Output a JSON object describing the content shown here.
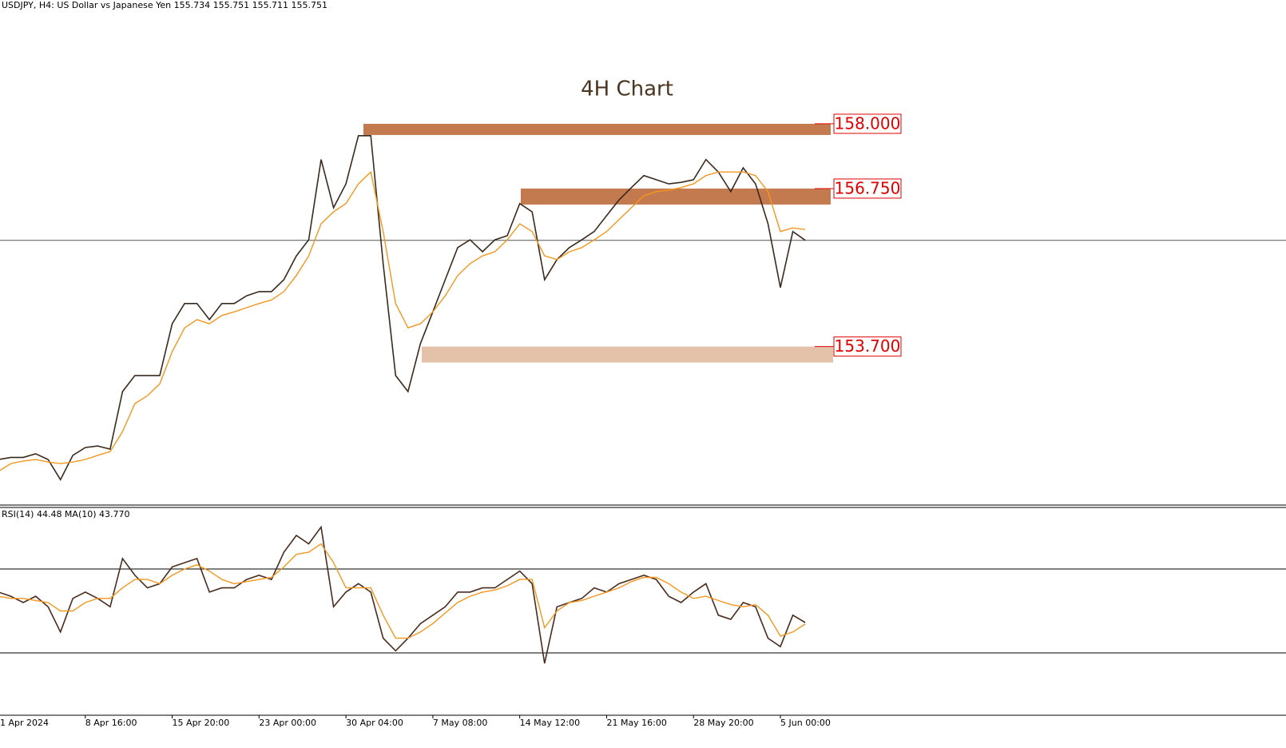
{
  "chart_data": {
    "type": "line",
    "header": "USDJPY, H4:  US Dollar vs Japanese Yen  155.734 155.751 155.711 155.751",
    "title": "4H Chart",
    "current_price": 155.751,
    "categories": [
      "1 Apr 2024",
      null,
      null,
      null,
      null,
      null,
      null,
      "8 Apr 16:00",
      null,
      null,
      null,
      null,
      null,
      null,
      "15 Apr 20:00",
      null,
      null,
      null,
      null,
      null,
      null,
      "23 Apr 00:00",
      null,
      null,
      null,
      null,
      null,
      null,
      "30 Apr 04:00",
      null,
      null,
      null,
      null,
      null,
      null,
      "7 May 08:00",
      null,
      null,
      null,
      null,
      null,
      null,
      "14 May 12:00",
      null,
      null,
      null,
      null,
      null,
      null,
      "21 May 16:00",
      null,
      null,
      null,
      null,
      null,
      null,
      "28 May 20:00",
      null,
      null,
      null,
      null,
      null,
      null,
      "5 Jun 00:00",
      null,
      null
    ],
    "ylim": [
      150.64,
      160.39
    ],
    "series": [
      {
        "color": "#3a2a1e",
        "values": [
          151.52,
          151.56,
          151.56,
          151.63,
          151.52,
          151.13,
          151.6,
          151.75,
          151.78,
          151.72,
          152.83,
          153.14,
          153.14,
          153.14,
          154.14,
          154.53,
          154.53,
          154.22,
          154.53,
          154.53,
          154.68,
          154.76,
          154.76,
          154.99,
          155.45,
          155.76,
          157.31,
          156.38,
          156.84,
          157.77,
          157.77,
          155.3,
          153.14,
          152.83,
          153.76,
          154.37,
          154.99,
          155.61,
          155.76,
          155.53,
          155.76,
          155.84,
          156.46,
          156.3,
          154.99,
          155.38,
          155.61,
          155.76,
          155.92,
          156.23,
          156.53,
          156.77,
          157.0,
          156.92,
          156.84,
          156.87,
          156.92,
          157.31,
          157.07,
          156.69,
          157.15,
          156.84,
          156.07,
          154.84,
          155.92,
          155.751
        ]
      },
      {
        "color": "#f5961e",
        "values": [
          151.29,
          151.44,
          151.49,
          151.52,
          151.47,
          151.44,
          151.47,
          151.52,
          151.6,
          151.67,
          152.06,
          152.6,
          152.75,
          152.98,
          153.6,
          154.06,
          154.22,
          154.14,
          154.3,
          154.37,
          154.45,
          154.53,
          154.6,
          154.76,
          155.07,
          155.45,
          156.07,
          156.3,
          156.46,
          156.84,
          157.07,
          155.92,
          154.53,
          154.06,
          154.14,
          154.37,
          154.68,
          155.07,
          155.3,
          155.45,
          155.53,
          155.76,
          156.07,
          155.92,
          155.45,
          155.38,
          155.53,
          155.61,
          155.76,
          155.92,
          156.15,
          156.38,
          156.61,
          156.69,
          156.72,
          156.77,
          156.84,
          157.0,
          157.07,
          157.07,
          157.07,
          157.0,
          156.69,
          155.92,
          155.99,
          155.96
        ]
      }
    ],
    "levels": [
      {
        "value": 158,
        "label": "158.000",
        "color": "#c27a4e"
      },
      {
        "value": 156.75,
        "label": "156.750",
        "color": "#c27a4e"
      },
      {
        "value": 153.7,
        "label": "153.700",
        "color": "#e4c2a9"
      }
    ],
    "indicator": {
      "label": "RSI(14) 44.48 MA(10) 43.770",
      "ylim": [
        0,
        100
      ],
      "levels": [
        30,
        70
      ],
      "series": [
        {
          "color": "#4a2c1e",
          "values": [
            59,
            57,
            54,
            57,
            52,
            40,
            56,
            59,
            56,
            52,
            75,
            67,
            61,
            63,
            71,
            73,
            75,
            59,
            61,
            61,
            65,
            67,
            65,
            78,
            86,
            82,
            90,
            52,
            59,
            63,
            59,
            37,
            31,
            37,
            44,
            48,
            52,
            59,
            59,
            61,
            61,
            65,
            69,
            63,
            25,
            52,
            54,
            56,
            61,
            59,
            63,
            65,
            67,
            65,
            57,
            54,
            59,
            63,
            48,
            46,
            54,
            52,
            37,
            33,
            48,
            44.48
          ]
        },
        {
          "color": "#f5961e",
          "values": [
            57,
            56,
            56,
            55,
            54,
            50,
            50,
            54,
            56,
            56,
            61,
            65,
            65,
            63,
            67,
            70,
            72,
            69,
            65,
            63,
            64,
            65,
            66,
            71,
            77,
            78,
            82,
            73,
            61,
            61,
            61,
            48,
            37,
            37,
            40,
            44,
            49,
            54,
            57,
            59,
            60,
            62,
            65,
            65,
            42,
            50,
            54,
            55,
            57,
            59,
            61,
            64,
            66,
            66,
            63,
            59,
            56,
            57,
            55,
            53,
            52,
            53,
            48,
            38,
            40,
            43.77
          ]
        }
      ]
    }
  }
}
